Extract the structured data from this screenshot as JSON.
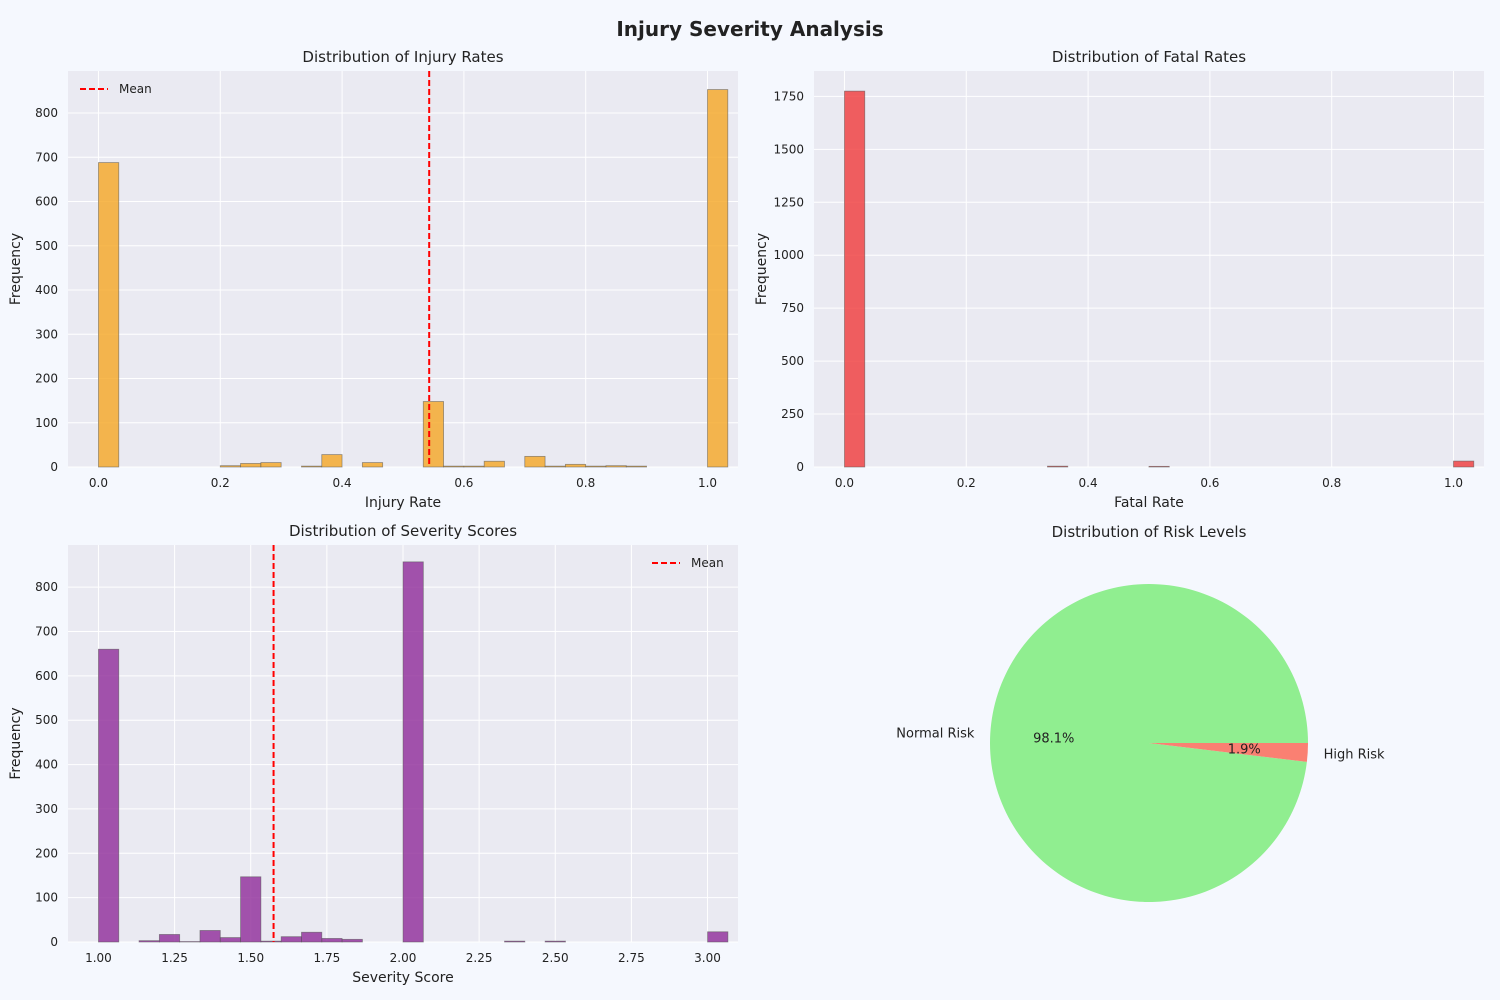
{
  "figure_title": "Injury Severity Analysis",
  "colors": {
    "background": "#f5f8fe",
    "axes_background": "#eaeaf2",
    "grid": "#ffffff",
    "mean_line": "#ff0000"
  },
  "chart_data": [
    {
      "id": "injury",
      "type": "bar",
      "subtype": "histogram",
      "title": "Distribution of Injury Rates",
      "xlabel": "Injury Rate",
      "ylabel": "Frequency",
      "xlim": [
        -0.05,
        1.05
      ],
      "ylim": [
        0,
        895
      ],
      "xticks": [
        0.0,
        0.2,
        0.4,
        0.6,
        0.8,
        1.0
      ],
      "xtick_labels": [
        "0.0",
        "0.2",
        "0.4",
        "0.6",
        "0.8",
        "1.0"
      ],
      "yticks": [
        0,
        100,
        200,
        300,
        400,
        500,
        600,
        700,
        800
      ],
      "ytick_labels": [
        "0",
        "100",
        "200",
        "300",
        "400",
        "500",
        "600",
        "700",
        "800"
      ],
      "bin_start": 0.0,
      "bin_width": 0.03333,
      "values": [
        688,
        0,
        0,
        0,
        0,
        0,
        3,
        8,
        10,
        0,
        2,
        28,
        0,
        10,
        0,
        0,
        148,
        2,
        2,
        13,
        0,
        24,
        2,
        6,
        2,
        3,
        2,
        0,
        0,
        0,
        853
      ],
      "color": "#f5a623",
      "mean": 0.543,
      "legend": {
        "label": "Mean",
        "position": "upper left"
      },
      "grid": true
    },
    {
      "id": "fatal",
      "type": "bar",
      "subtype": "histogram",
      "title": "Distribution of Fatal Rates",
      "xlabel": "Fatal Rate",
      "ylabel": "Frequency",
      "xlim": [
        -0.05,
        1.05
      ],
      "ylim": [
        0,
        1870
      ],
      "xticks": [
        0.0,
        0.2,
        0.4,
        0.6,
        0.8,
        1.0
      ],
      "xtick_labels": [
        "0.0",
        "0.2",
        "0.4",
        "0.6",
        "0.8",
        "1.0"
      ],
      "yticks": [
        0,
        250,
        500,
        750,
        1000,
        1250,
        1500,
        1750
      ],
      "ytick_labels": [
        "0",
        "250",
        "500",
        "750",
        "1000",
        "1250",
        "1500",
        "1750"
      ],
      "bin_start": 0.0,
      "bin_width": 0.03333,
      "values": [
        1775,
        0,
        0,
        0,
        0,
        0,
        0,
        0,
        0,
        0,
        4,
        0,
        0,
        0,
        0,
        3,
        0,
        0,
        0,
        0,
        0,
        0,
        0,
        0,
        0,
        0,
        0,
        0,
        0,
        0,
        28
      ],
      "color": "#f03a3a",
      "grid": true
    },
    {
      "id": "severity",
      "type": "bar",
      "subtype": "histogram",
      "title": "Distribution of Severity Scores",
      "xlabel": "Severity Score",
      "ylabel": "Frequency",
      "xlim": [
        0.9,
        3.1
      ],
      "ylim": [
        0,
        895
      ],
      "xticks": [
        1.0,
        1.25,
        1.5,
        1.75,
        2.0,
        2.25,
        2.5,
        2.75,
        3.0
      ],
      "xtick_labels": [
        "1.00",
        "1.25",
        "1.50",
        "1.75",
        "2.00",
        "2.25",
        "2.50",
        "2.75",
        "3.00"
      ],
      "yticks": [
        0,
        100,
        200,
        300,
        400,
        500,
        600,
        700,
        800
      ],
      "ytick_labels": [
        "0",
        "100",
        "200",
        "300",
        "400",
        "500",
        "600",
        "700",
        "800"
      ],
      "bin_start": 1.0,
      "bin_width": 0.06667,
      "values": [
        660,
        0,
        3,
        17,
        1,
        26,
        10,
        147,
        2,
        12,
        22,
        8,
        6,
        0,
        0,
        857,
        0,
        0,
        0,
        0,
        2,
        0,
        2,
        0,
        0,
        0,
        0,
        0,
        0,
        0,
        23
      ],
      "color": "#8e2b99",
      "mean": 1.575,
      "legend": {
        "label": "Mean",
        "position": "upper right"
      },
      "grid": true
    },
    {
      "id": "risk",
      "type": "pie",
      "title": "Distribution of Risk Levels",
      "labels": [
        "Normal Risk",
        "High Risk"
      ],
      "values": [
        98.1,
        1.9
      ],
      "pct_labels": [
        "98.1%",
        "1.9%"
      ],
      "colors": [
        "#90ee90",
        "#fa8072"
      ]
    }
  ]
}
